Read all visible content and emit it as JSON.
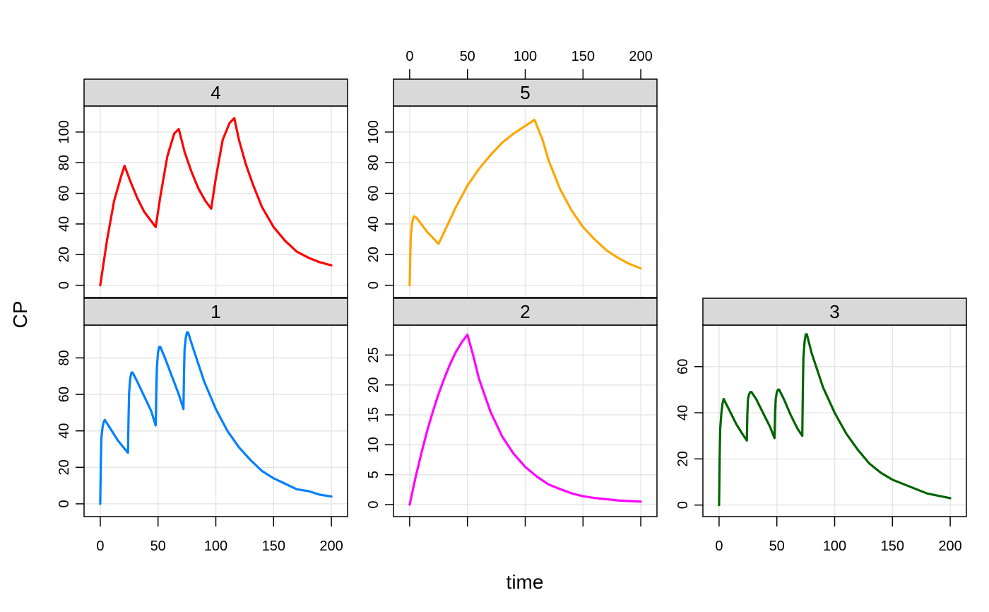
{
  "figure": {
    "xlabel": "time",
    "ylabel": "CP"
  },
  "colors": {
    "grid": "#e6e6e6",
    "strip_bg": "#d9d9d9",
    "frame": "#000000"
  },
  "chart_data": [
    {
      "type": "line",
      "panel": "4",
      "color": "#ff0000",
      "xlim": [
        -14,
        214
      ],
      "ylim": [
        -8,
        117
      ],
      "xticks": [
        0,
        50,
        100,
        150,
        200
      ],
      "yticks": [
        0,
        20,
        40,
        60,
        80,
        100
      ],
      "x_tick_labels_shown": false,
      "y_tick_labels_shown": true,
      "x": [
        0,
        6,
        12,
        18,
        21,
        26,
        32,
        38,
        44,
        48,
        52,
        58,
        64,
        68,
        73,
        79,
        85,
        91,
        96,
        100,
        106,
        112,
        116,
        120,
        126,
        132,
        140,
        150,
        160,
        170,
        180,
        190,
        200
      ],
      "values": [
        0,
        30,
        55,
        71,
        78,
        68,
        57,
        48,
        42,
        38,
        58,
        84,
        99,
        102,
        87,
        74,
        63,
        55,
        50,
        70,
        95,
        106,
        109,
        95,
        79,
        66,
        51,
        38,
        29,
        22,
        18,
        15,
        13
      ]
    },
    {
      "type": "line",
      "panel": "5",
      "color": "#ffa500",
      "xlim": [
        -14,
        214
      ],
      "ylim": [
        -8,
        117
      ],
      "xticks": [
        0,
        50,
        100,
        150,
        200
      ],
      "yticks": [
        0,
        20,
        40,
        60,
        80,
        100
      ],
      "x_tick_labels_shown": true,
      "x_tick_labels_position": "top",
      "y_tick_labels_shown": true,
      "x": [
        0,
        0.5,
        1,
        2,
        3,
        4,
        6,
        10,
        15,
        20,
        25,
        30,
        35,
        40,
        50,
        60,
        70,
        80,
        90,
        100,
        108,
        115,
        120,
        130,
        140,
        150,
        160,
        170,
        180,
        190,
        200
      ],
      "values": [
        0,
        18,
        32,
        40,
        44,
        45,
        44,
        40,
        35,
        31,
        27,
        35,
        43,
        51,
        65,
        76,
        85,
        93,
        99,
        104,
        108,
        95,
        82,
        63,
        49,
        38,
        30,
        23,
        18,
        14,
        11
      ]
    },
    {
      "type": "line",
      "panel": "1",
      "color": "#0080ff",
      "xlim": [
        -14,
        214
      ],
      "ylim": [
        -7,
        98
      ],
      "xticks": [
        0,
        50,
        100,
        150,
        200
      ],
      "yticks": [
        0,
        20,
        40,
        60,
        80
      ],
      "x_tick_labels_shown": true,
      "x_tick_labels_position": "bottom",
      "y_tick_labels_shown": true,
      "x": [
        0,
        0.5,
        1,
        2,
        3,
        4,
        6,
        10,
        15,
        20,
        24,
        24.5,
        25,
        26,
        27,
        28,
        32,
        38,
        44,
        48,
        48.5,
        49,
        50,
        51,
        52,
        56,
        62,
        68,
        72,
        72.5,
        73,
        74,
        75,
        76,
        80,
        90,
        100,
        110,
        120,
        130,
        140,
        150,
        160,
        170,
        180,
        190,
        200
      ],
      "values": [
        0,
        22,
        36,
        42,
        45,
        46,
        44,
        40,
        35,
        31,
        28,
        48,
        61,
        69,
        72,
        72,
        67,
        59,
        51,
        43,
        62,
        75,
        83,
        86,
        86,
        80,
        70,
        60,
        52,
        72,
        85,
        91,
        94,
        94,
        86,
        67,
        52,
        40,
        31,
        24,
        18,
        14,
        11,
        8,
        7,
        5,
        4
      ]
    },
    {
      "type": "line",
      "panel": "2",
      "color": "#ff00ff",
      "xlim": [
        -14,
        214
      ],
      "ylim": [
        -2,
        30
      ],
      "xticks": [
        0,
        50,
        100,
        150,
        200
      ],
      "yticks": [
        0,
        5,
        10,
        15,
        20,
        25
      ],
      "x_tick_labels_shown": false,
      "y_tick_labels_shown": true,
      "x": [
        0,
        5,
        10,
        15,
        20,
        25,
        30,
        35,
        40,
        45,
        50,
        55,
        60,
        70,
        80,
        90,
        100,
        110,
        120,
        130,
        140,
        150,
        160,
        170,
        180,
        190,
        200
      ],
      "values": [
        0,
        4.5,
        8.5,
        12.2,
        15.5,
        18.5,
        21.1,
        23.5,
        25.5,
        27.1,
        28.4,
        24.9,
        21.0,
        15.5,
        11.4,
        8.5,
        6.3,
        4.7,
        3.4,
        2.6,
        1.9,
        1.4,
        1.1,
        0.9,
        0.7,
        0.6,
        0.5
      ]
    },
    {
      "type": "line",
      "panel": "3",
      "color": "#006400",
      "xlim": [
        -14,
        214
      ],
      "ylim": [
        -5,
        78
      ],
      "xticks": [
        0,
        50,
        100,
        150,
        200
      ],
      "yticks": [
        0,
        20,
        40,
        60
      ],
      "x_tick_labels_shown": true,
      "x_tick_labels_position": "bottom",
      "y_tick_labels_shown": true,
      "x": [
        0,
        0.5,
        1,
        2,
        3,
        4,
        6,
        10,
        15,
        20,
        24,
        24.5,
        25,
        26,
        27,
        28,
        32,
        38,
        44,
        48,
        48.5,
        49,
        50,
        51,
        52,
        56,
        62,
        68,
        72,
        72.5,
        73,
        74,
        75,
        76,
        80,
        90,
        100,
        110,
        120,
        130,
        140,
        150,
        160,
        170,
        180,
        190,
        200
      ],
      "values": [
        0,
        20,
        33,
        40,
        44,
        46,
        44,
        40,
        35,
        31,
        28,
        40,
        46,
        48,
        49,
        49,
        46,
        40,
        34,
        29,
        40,
        46,
        49,
        50,
        50,
        46,
        39,
        33,
        30,
        50,
        64,
        71,
        74,
        74,
        66,
        51,
        40,
        31,
        24,
        18,
        14,
        11,
        9,
        7,
        5,
        4,
        3
      ]
    }
  ]
}
